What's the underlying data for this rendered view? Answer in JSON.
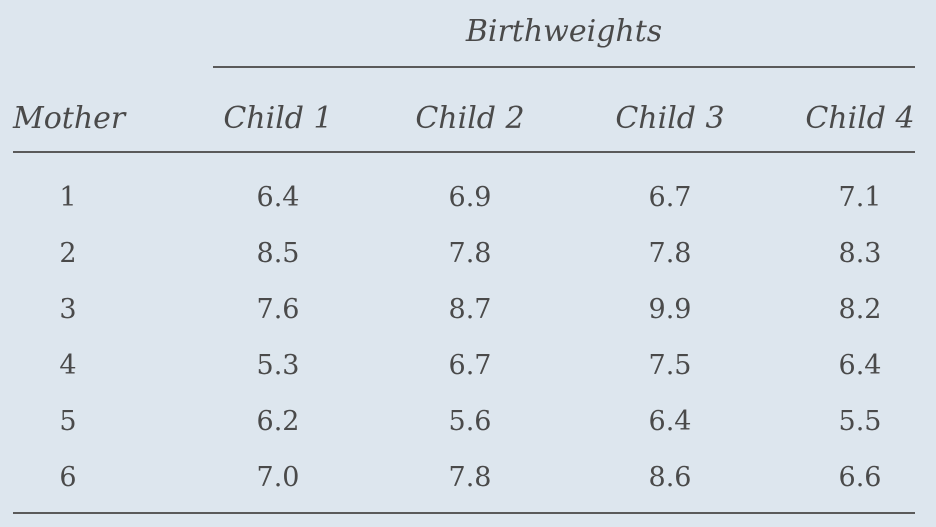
{
  "table": {
    "group_header": "Birthweights",
    "columns": [
      "Mother",
      "Child 1",
      "Child 2",
      "Child 3",
      "Child 4"
    ],
    "rows": [
      [
        "1",
        "6.4",
        "6.9",
        "6.7",
        "7.1"
      ],
      [
        "2",
        "8.5",
        "7.8",
        "7.8",
        "8.3"
      ],
      [
        "3",
        "7.6",
        "8.7",
        "9.9",
        "8.2"
      ],
      [
        "4",
        "5.3",
        "6.7",
        "7.5",
        "6.4"
      ],
      [
        "5",
        "6.2",
        "5.6",
        "6.4",
        "5.5"
      ],
      [
        "6",
        "7.0",
        "7.8",
        "8.6",
        "6.6"
      ]
    ]
  }
}
